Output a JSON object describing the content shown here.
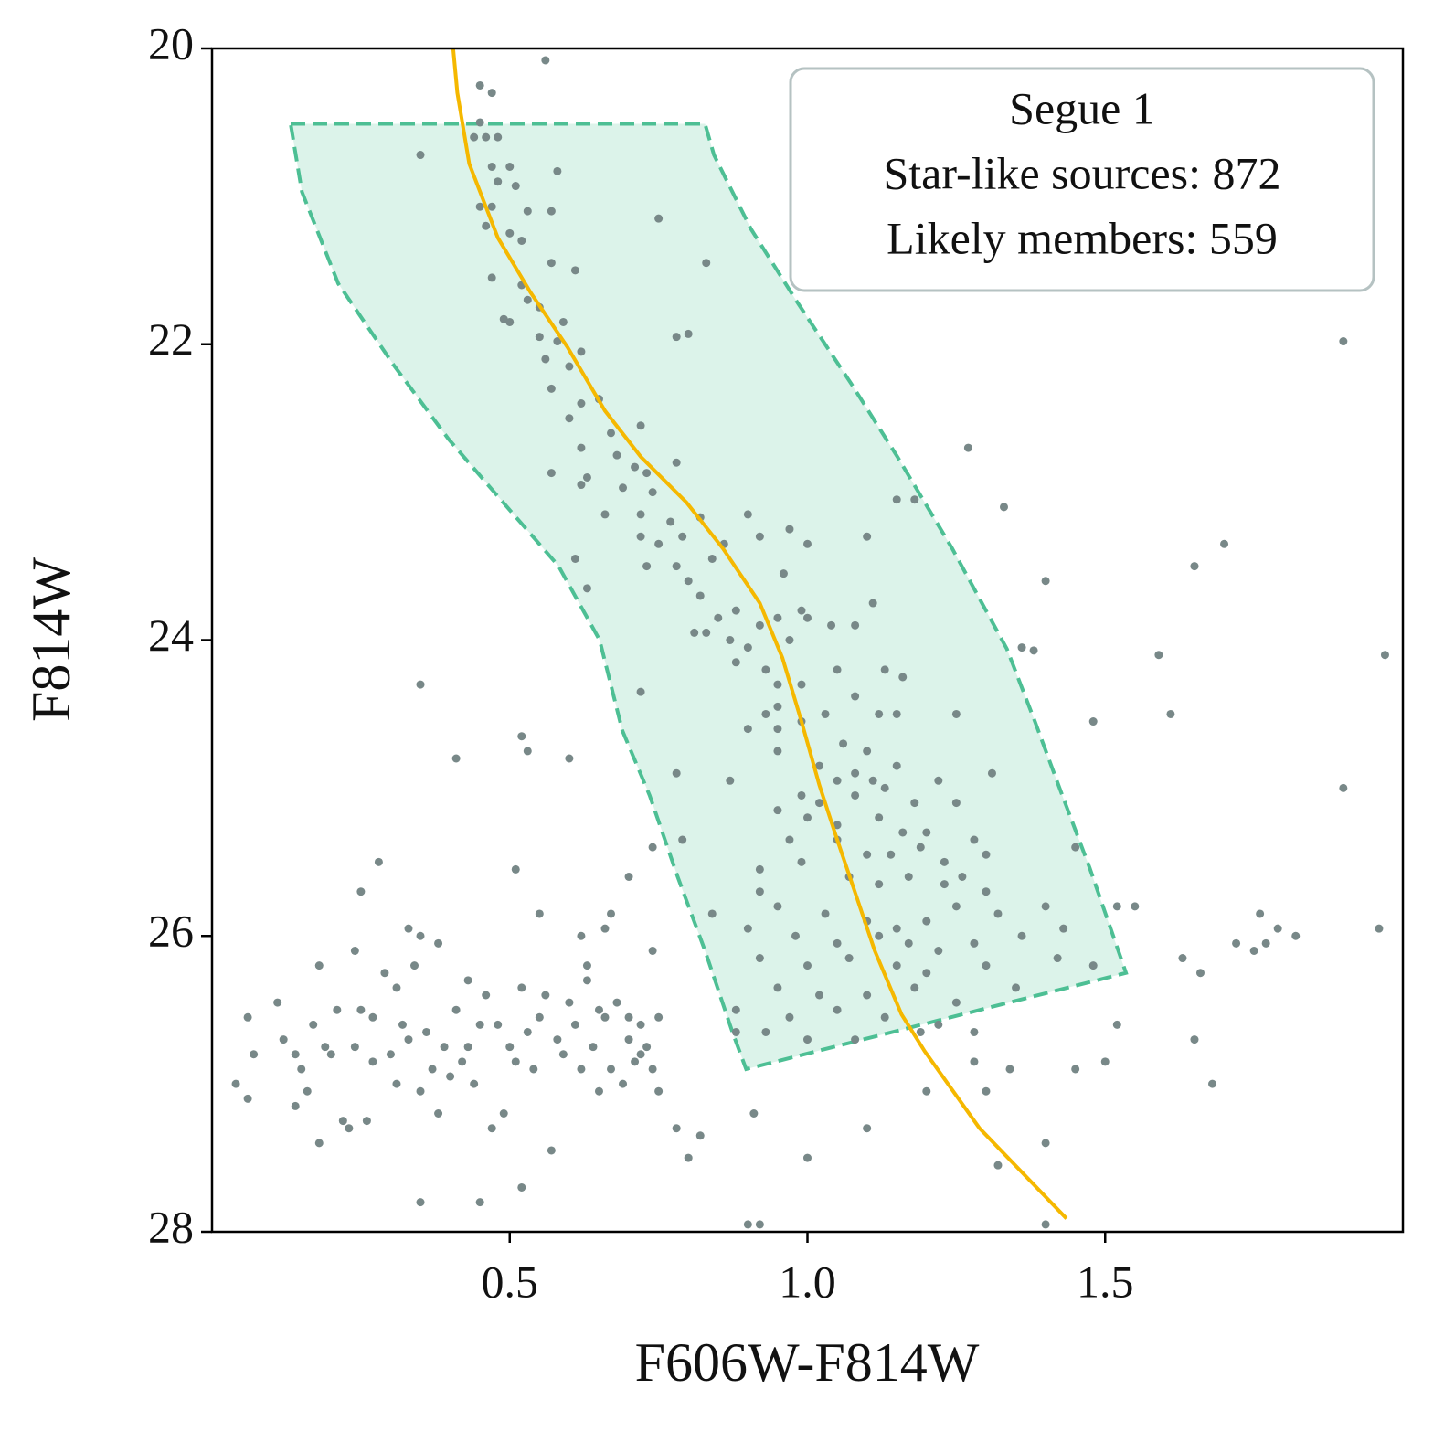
{
  "chart_data": {
    "type": "scatter",
    "xlabel": "F606W-F814W",
    "ylabel": "F814W",
    "xlim": [
      0,
      2
    ],
    "ylim": [
      28,
      20
    ],
    "xticks": [
      0.5,
      {
        "value": 1,
        "label": "1.0"
      },
      1.5
    ],
    "yticks": [
      20,
      22,
      24,
      26,
      28
    ],
    "annotation": [
      "Segue 1",
      "Star-like sources: 872",
      "Likely members: 559"
    ],
    "region": {
      "color": "#4dbf94",
      "fill": "#dcf3ea",
      "x": [
        0.132,
        0.828,
        0.843,
        0.905,
        0.982,
        1.074,
        1.151,
        1.243,
        1.335,
        1.382,
        1.428,
        1.474,
        1.535,
        0.897,
        0.874,
        0.828,
        0.782,
        0.735,
        0.689,
        0.651,
        0.582,
        0.474,
        0.397,
        0.305,
        0.212,
        0.151,
        0.132
      ],
      "y": [
        20.51,
        20.51,
        20.72,
        21.22,
        21.71,
        22.27,
        22.76,
        23.38,
        24.06,
        24.55,
        25.05,
        25.54,
        26.25,
        26.9,
        26.65,
        26.1,
        25.6,
        25.05,
        24.61,
        24.0,
        23.5,
        23.0,
        22.64,
        22.14,
        21.59,
        20.97,
        20.51
      ]
    },
    "isochrone": {
      "color": "#f5b800",
      "x": [
        0.405,
        0.412,
        0.432,
        0.48,
        0.535,
        0.597,
        0.66,
        0.72,
        0.797,
        0.858,
        0.92,
        0.958,
        0.99,
        1.02,
        1.05,
        1.082,
        1.113,
        1.158,
        1.197,
        1.289,
        1.435
      ],
      "y": [
        20,
        20.3,
        20.78,
        21.28,
        21.65,
        22.02,
        22.45,
        22.76,
        23.07,
        23.38,
        23.75,
        24.12,
        24.55,
        24.98,
        25.35,
        25.73,
        26.1,
        26.53,
        26.78,
        27.3,
        27.91
      ]
    },
    "point_color": "#788888",
    "points": [
      [
        0.56,
        20.08
      ],
      [
        0.45,
        20.25
      ],
      [
        0.47,
        20.3
      ],
      [
        0.45,
        20.5
      ],
      [
        0.46,
        20.6
      ],
      [
        0.48,
        20.6
      ],
      [
        0.44,
        20.6
      ],
      [
        0.35,
        20.72
      ],
      [
        0.47,
        20.8
      ],
      [
        0.5,
        20.8
      ],
      [
        0.58,
        20.83
      ],
      [
        0.48,
        20.9
      ],
      [
        0.51,
        20.93
      ],
      [
        0.45,
        21.07
      ],
      [
        0.47,
        21.07
      ],
      [
        0.53,
        21.1
      ],
      [
        0.57,
        21.1
      ],
      [
        0.75,
        21.15
      ],
      [
        0.46,
        21.2
      ],
      [
        0.5,
        21.25
      ],
      [
        0.52,
        21.3
      ],
      [
        0.57,
        21.45
      ],
      [
        0.61,
        21.5
      ],
      [
        0.47,
        21.55
      ],
      [
        0.52,
        21.6
      ],
      [
        0.53,
        21.7
      ],
      [
        0.55,
        21.75
      ],
      [
        0.49,
        21.83
      ],
      [
        0.83,
        21.45
      ],
      [
        0.59,
        21.85
      ],
      [
        0.5,
        21.85
      ],
      [
        0.55,
        21.95
      ],
      [
        0.58,
        21.98
      ],
      [
        0.62,
        22.05
      ],
      [
        0.8,
        21.93
      ],
      [
        0.78,
        21.95
      ],
      [
        0.56,
        22.1
      ],
      [
        0.6,
        22.15
      ],
      [
        0.57,
        22.3
      ],
      [
        0.62,
        22.4
      ],
      [
        0.65,
        22.37
      ],
      [
        0.6,
        22.5
      ],
      [
        0.67,
        22.6
      ],
      [
        0.62,
        22.7
      ],
      [
        0.72,
        22.55
      ],
      [
        0.68,
        22.75
      ],
      [
        0.57,
        22.87
      ],
      [
        0.63,
        22.9
      ],
      [
        0.71,
        22.83
      ],
      [
        0.73,
        22.87
      ],
      [
        0.78,
        22.8
      ],
      [
        0.62,
        22.95
      ],
      [
        0.69,
        22.97
      ],
      [
        0.74,
        23.0
      ],
      [
        0.66,
        23.15
      ],
      [
        0.72,
        23.15
      ],
      [
        0.77,
        23.2
      ],
      [
        0.82,
        23.17
      ],
      [
        0.72,
        23.3
      ],
      [
        0.75,
        23.35
      ],
      [
        0.79,
        23.3
      ],
      [
        0.9,
        23.15
      ],
      [
        0.92,
        23.3
      ],
      [
        0.86,
        23.35
      ],
      [
        0.84,
        23.45
      ],
      [
        0.78,
        23.5
      ],
      [
        0.73,
        23.5
      ],
      [
        0.8,
        23.6
      ],
      [
        0.63,
        23.65
      ],
      [
        0.61,
        23.45
      ],
      [
        0.97,
        23.25
      ],
      [
        1.0,
        23.35
      ],
      [
        0.96,
        23.55
      ],
      [
        0.82,
        23.7
      ],
      [
        0.85,
        23.85
      ],
      [
        0.88,
        23.8
      ],
      [
        0.92,
        23.9
      ],
      [
        0.95,
        23.85
      ],
      [
        0.99,
        23.8
      ],
      [
        1.04,
        23.9
      ],
      [
        0.83,
        23.95
      ],
      [
        0.81,
        23.95
      ],
      [
        0.87,
        24.0
      ],
      [
        0.9,
        24.05
      ],
      [
        0.97,
        24.0
      ],
      [
        1.08,
        23.9
      ],
      [
        1.0,
        23.85
      ],
      [
        1.11,
        23.75
      ],
      [
        0.88,
        24.15
      ],
      [
        0.93,
        24.2
      ],
      [
        0.95,
        24.3
      ],
      [
        0.99,
        24.3
      ],
      [
        1.05,
        24.2
      ],
      [
        1.13,
        24.2
      ],
      [
        1.16,
        24.25
      ],
      [
        0.72,
        24.35
      ],
      [
        0.95,
        24.45
      ],
      [
        0.93,
        24.5
      ],
      [
        0.99,
        24.55
      ],
      [
        1.03,
        24.5
      ],
      [
        1.08,
        24.38
      ],
      [
        1.12,
        24.5
      ],
      [
        1.15,
        24.5
      ],
      [
        0.9,
        24.6
      ],
      [
        0.95,
        24.6
      ],
      [
        1.06,
        24.7
      ],
      [
        1.1,
        24.75
      ],
      [
        1.02,
        24.85
      ],
      [
        1.05,
        24.95
      ],
      [
        1.08,
        24.9
      ],
      [
        1.11,
        24.95
      ],
      [
        1.15,
        24.85
      ],
      [
        1.22,
        24.95
      ],
      [
        0.99,
        25.05
      ],
      [
        1.02,
        25.1
      ],
      [
        1.08,
        25.05
      ],
      [
        1.13,
        25.0
      ],
      [
        1.18,
        25.1
      ],
      [
        1.25,
        25.1
      ],
      [
        0.95,
        25.15
      ],
      [
        1.0,
        25.2
      ],
      [
        1.05,
        25.25
      ],
      [
        1.12,
        25.2
      ],
      [
        1.16,
        25.3
      ],
      [
        1.2,
        25.3
      ],
      [
        1.28,
        25.35
      ],
      [
        0.97,
        25.35
      ],
      [
        1.05,
        25.35
      ],
      [
        1.1,
        25.45
      ],
      [
        1.14,
        25.45
      ],
      [
        1.19,
        25.4
      ],
      [
        1.23,
        25.5
      ],
      [
        1.3,
        25.45
      ],
      [
        0.99,
        25.5
      ],
      [
        1.07,
        25.6
      ],
      [
        1.12,
        25.65
      ],
      [
        1.17,
        25.6
      ],
      [
        1.23,
        25.65
      ],
      [
        1.26,
        25.6
      ],
      [
        1.3,
        25.7
      ],
      [
        0.92,
        25.7
      ],
      [
        0.95,
        25.8
      ],
      [
        1.03,
        25.85
      ],
      [
        1.1,
        25.9
      ],
      [
        1.15,
        25.95
      ],
      [
        1.2,
        25.9
      ],
      [
        1.25,
        25.8
      ],
      [
        1.32,
        25.85
      ],
      [
        1.4,
        25.8
      ],
      [
        0.9,
        25.95
      ],
      [
        0.98,
        26.0
      ],
      [
        1.05,
        26.05
      ],
      [
        1.12,
        26.0
      ],
      [
        1.17,
        26.05
      ],
      [
        1.22,
        26.1
      ],
      [
        1.28,
        26.05
      ],
      [
        1.36,
        26.0
      ],
      [
        0.92,
        26.15
      ],
      [
        1.0,
        26.2
      ],
      [
        1.07,
        26.15
      ],
      [
        1.15,
        26.2
      ],
      [
        1.2,
        26.25
      ],
      [
        1.3,
        26.2
      ],
      [
        1.42,
        26.15
      ],
      [
        0.95,
        26.35
      ],
      [
        1.02,
        26.4
      ],
      [
        1.1,
        26.4
      ],
      [
        1.18,
        26.35
      ],
      [
        1.25,
        26.45
      ],
      [
        1.35,
        26.35
      ],
      [
        0.88,
        26.5
      ],
      [
        0.97,
        26.55
      ],
      [
        1.05,
        26.5
      ],
      [
        1.13,
        26.55
      ],
      [
        1.22,
        26.6
      ],
      [
        0.93,
        26.65
      ],
      [
        1.0,
        26.7
      ],
      [
        1.08,
        26.7
      ],
      [
        1.19,
        26.65
      ],
      [
        1.28,
        26.65
      ],
      [
        0.78,
        24.9
      ],
      [
        0.87,
        24.95
      ],
      [
        0.95,
        24.75
      ],
      [
        0.79,
        25.35
      ],
      [
        0.74,
        25.4
      ],
      [
        0.92,
        25.55
      ],
      [
        0.84,
        25.85
      ],
      [
        0.88,
        26.65
      ],
      [
        1.25,
        24.5
      ],
      [
        1.31,
        24.9
      ],
      [
        1.15,
        23.05
      ],
      [
        1.18,
        23.05
      ],
      [
        1.33,
        23.1
      ],
      [
        1.27,
        22.7
      ],
      [
        1.1,
        23.3
      ],
      [
        1.4,
        23.6
      ],
      [
        1.36,
        24.05
      ],
      [
        1.38,
        24.07
      ],
      [
        1.48,
        24.55
      ],
      [
        1.45,
        25.4
      ],
      [
        1.43,
        25.95
      ],
      [
        1.52,
        25.8
      ],
      [
        1.48,
        26.2
      ],
      [
        1.55,
        25.8
      ],
      [
        1.59,
        24.1
      ],
      [
        1.61,
        24.5
      ],
      [
        1.65,
        23.5
      ],
      [
        1.7,
        23.35
      ],
      [
        1.63,
        26.15
      ],
      [
        1.66,
        26.25
      ],
      [
        1.72,
        26.05
      ],
      [
        1.75,
        26.1
      ],
      [
        1.77,
        26.05
      ],
      [
        1.79,
        25.95
      ],
      [
        1.76,
        25.85
      ],
      [
        1.82,
        26.0
      ],
      [
        1.9,
        21.98
      ],
      [
        1.9,
        25.0
      ],
      [
        1.96,
        25.95
      ],
      [
        1.97,
        24.1
      ],
      [
        1.65,
        26.7
      ],
      [
        1.68,
        27.0
      ],
      [
        1.4,
        27.4
      ],
      [
        1.32,
        27.55
      ],
      [
        1.4,
        27.95
      ],
      [
        1.5,
        26.85
      ],
      [
        1.52,
        26.6
      ],
      [
        1.45,
        26.9
      ],
      [
        1.34,
        26.9
      ],
      [
        1.28,
        26.85
      ],
      [
        1.3,
        27.05
      ],
      [
        1.2,
        27.05
      ],
      [
        1.1,
        27.3
      ],
      [
        1.0,
        27.5
      ],
      [
        0.92,
        27.95
      ],
      [
        0.9,
        27.95
      ],
      [
        0.91,
        27.2
      ],
      [
        0.82,
        27.35
      ],
      [
        0.8,
        27.5
      ],
      [
        0.78,
        27.3
      ],
      [
        0.75,
        27.05
      ],
      [
        0.72,
        26.8
      ],
      [
        0.7,
        26.55
      ],
      [
        0.66,
        25.95
      ],
      [
        0.67,
        25.85
      ],
      [
        0.7,
        25.6
      ],
      [
        0.62,
        26.0
      ],
      [
        0.55,
        25.85
      ],
      [
        0.51,
        25.55
      ],
      [
        0.52,
        24.65
      ],
      [
        0.53,
        24.75
      ],
      [
        0.41,
        24.8
      ],
      [
        0.35,
        24.3
      ],
      [
        0.6,
        24.8
      ],
      [
        0.04,
        27.0
      ],
      [
        0.06,
        27.1
      ],
      [
        0.07,
        26.8
      ],
      [
        0.06,
        26.55
      ],
      [
        0.11,
        26.45
      ],
      [
        0.12,
        26.7
      ],
      [
        0.14,
        26.8
      ],
      [
        0.15,
        26.9
      ],
      [
        0.14,
        27.15
      ],
      [
        0.16,
        27.05
      ],
      [
        0.17,
        26.6
      ],
      [
        0.18,
        27.4
      ],
      [
        0.18,
        26.2
      ],
      [
        0.19,
        26.75
      ],
      [
        0.2,
        26.8
      ],
      [
        0.21,
        26.5
      ],
      [
        0.22,
        27.25
      ],
      [
        0.23,
        27.3
      ],
      [
        0.24,
        26.75
      ],
      [
        0.24,
        26.1
      ],
      [
        0.25,
        26.5
      ],
      [
        0.25,
        25.7
      ],
      [
        0.26,
        27.25
      ],
      [
        0.27,
        26.85
      ],
      [
        0.27,
        26.55
      ],
      [
        0.28,
        25.5
      ],
      [
        0.29,
        26.25
      ],
      [
        0.3,
        26.8
      ],
      [
        0.31,
        27.0
      ],
      [
        0.31,
        26.35
      ],
      [
        0.32,
        26.6
      ],
      [
        0.33,
        26.7
      ],
      [
        0.34,
        26.2
      ],
      [
        0.35,
        27.05
      ],
      [
        0.35,
        26.0
      ],
      [
        0.36,
        26.65
      ],
      [
        0.37,
        26.9
      ],
      [
        0.38,
        27.2
      ],
      [
        0.39,
        26.75
      ],
      [
        0.4,
        26.95
      ],
      [
        0.41,
        26.5
      ],
      [
        0.42,
        26.85
      ],
      [
        0.43,
        26.75
      ],
      [
        0.44,
        27.0
      ],
      [
        0.45,
        26.6
      ],
      [
        0.46,
        26.4
      ],
      [
        0.47,
        27.3
      ],
      [
        0.48,
        26.6
      ],
      [
        0.49,
        27.2
      ],
      [
        0.5,
        26.75
      ],
      [
        0.51,
        26.85
      ],
      [
        0.52,
        26.35
      ],
      [
        0.53,
        26.65
      ],
      [
        0.54,
        26.9
      ],
      [
        0.55,
        26.55
      ],
      [
        0.56,
        26.4
      ],
      [
        0.57,
        27.45
      ],
      [
        0.58,
        26.7
      ],
      [
        0.59,
        26.8
      ],
      [
        0.6,
        26.45
      ],
      [
        0.61,
        26.6
      ],
      [
        0.62,
        26.9
      ],
      [
        0.63,
        26.3
      ],
      [
        0.64,
        26.75
      ],
      [
        0.65,
        27.05
      ],
      [
        0.66,
        26.55
      ],
      [
        0.67,
        26.9
      ],
      [
        0.68,
        26.45
      ],
      [
        0.69,
        27.0
      ],
      [
        0.7,
        26.7
      ],
      [
        0.71,
        26.85
      ],
      [
        0.72,
        26.6
      ],
      [
        0.73,
        26.75
      ],
      [
        0.74,
        26.9
      ],
      [
        0.75,
        26.55
      ],
      [
        0.74,
        26.1
      ],
      [
        0.63,
        26.2
      ],
      [
        0.45,
        27.8
      ],
      [
        0.35,
        27.8
      ],
      [
        0.52,
        27.7
      ],
      [
        0.33,
        25.95
      ],
      [
        0.38,
        26.05
      ],
      [
        0.43,
        26.3
      ],
      [
        0.65,
        26.5
      ]
    ]
  }
}
